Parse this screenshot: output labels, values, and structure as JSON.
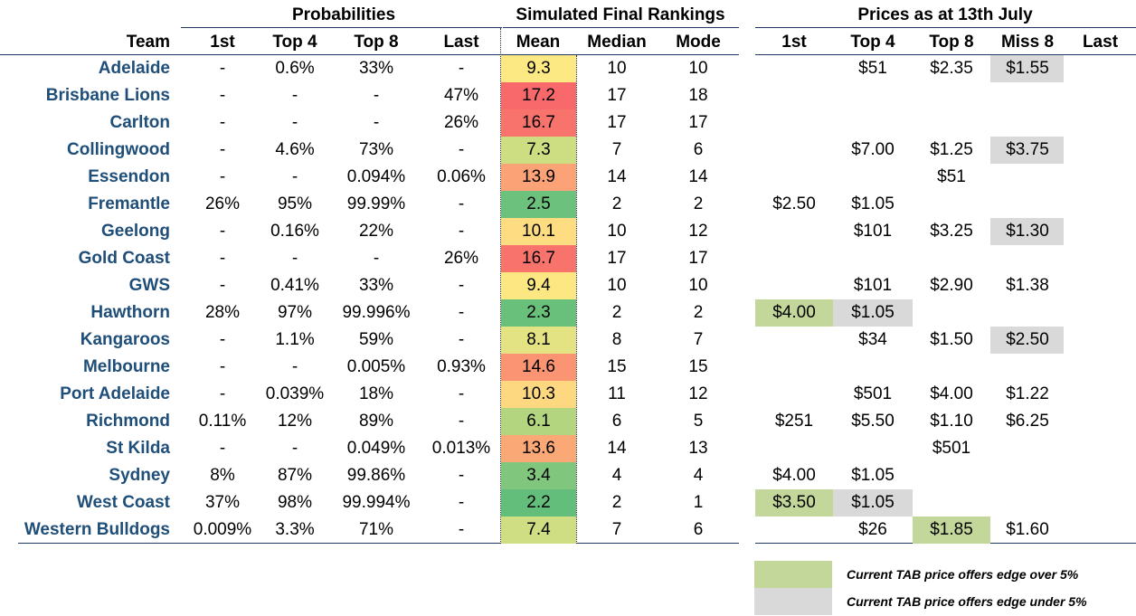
{
  "groups": {
    "probabilities": "Probabilities",
    "simulated": "Simulated Final Rankings",
    "prices": "Prices as at 13th July"
  },
  "headers": {
    "team": "Team",
    "p_1st": "1st",
    "p_top4": "Top 4",
    "p_top8": "Top 8",
    "p_last": "Last",
    "mean": "Mean",
    "median": "Median",
    "mode": "Mode",
    "pr_1st": "1st",
    "pr_top4": "Top 4",
    "pr_top8": "Top 8",
    "pr_miss8": "Miss 8",
    "pr_last": "Last"
  },
  "colors": {
    "green_edge": "#c4d79b",
    "grey_edge": "#d9d9d9",
    "title_blue": "#1f4e79"
  },
  "rows": [
    {
      "team": "Adelaide",
      "p1st": "-",
      "ptop4": "0.6%",
      "ptop8": "33%",
      "plast": "-",
      "mean": "9.3",
      "mean_color": "#fde983",
      "median": "10",
      "mode": "10",
      "pr1st": "",
      "prtop4": "$51",
      "prtop8": "$2.35",
      "prmiss8": "$1.55",
      "prlast": "",
      "hl": {
        "prmiss8": "grey"
      }
    },
    {
      "team": "Brisbane Lions",
      "p1st": "-",
      "ptop4": "-",
      "ptop8": "-",
      "plast": "47%",
      "mean": "17.2",
      "mean_color": "#f8696b",
      "median": "17",
      "mode": "18",
      "pr1st": "",
      "prtop4": "",
      "prtop8": "",
      "prmiss8": "",
      "prlast": "",
      "hl": {}
    },
    {
      "team": "Carlton",
      "p1st": "-",
      "ptop4": "-",
      "ptop8": "-",
      "plast": "26%",
      "mean": "16.7",
      "mean_color": "#f8736c",
      "median": "17",
      "mode": "17",
      "pr1st": "",
      "prtop4": "",
      "prtop8": "",
      "prmiss8": "",
      "prlast": "",
      "hl": {}
    },
    {
      "team": "Collingwood",
      "p1st": "-",
      "ptop4": "4.6%",
      "ptop8": "73%",
      "plast": "-",
      "mean": "7.3",
      "mean_color": "#cddd82",
      "median": "7",
      "mode": "6",
      "pr1st": "",
      "prtop4": "$7.00",
      "prtop8": "$1.25",
      "prmiss8": "$3.75",
      "prlast": "",
      "hl": {
        "prmiss8": "grey"
      }
    },
    {
      "team": "Essendon",
      "p1st": "-",
      "ptop4": "-",
      "ptop8": "0.094%",
      "plast": "0.06%",
      "mean": "13.9",
      "mean_color": "#fba276",
      "median": "14",
      "mode": "14",
      "pr1st": "",
      "prtop4": "",
      "prtop8": "$51",
      "prmiss8": "",
      "prlast": "",
      "hl": {}
    },
    {
      "team": "Fremantle",
      "p1st": "26%",
      "ptop4": "95%",
      "ptop8": "99.99%",
      "plast": "-",
      "mean": "2.5",
      "mean_color": "#6cc17c",
      "median": "2",
      "mode": "2",
      "pr1st": "$2.50",
      "prtop4": "$1.05",
      "prtop8": "",
      "prmiss8": "",
      "prlast": "",
      "hl": {}
    },
    {
      "team": "Geelong",
      "p1st": "-",
      "ptop4": "0.16%",
      "ptop8": "22%",
      "plast": "-",
      "mean": "10.1",
      "mean_color": "#fedc81",
      "median": "10",
      "mode": "12",
      "pr1st": "",
      "prtop4": "$101",
      "prtop8": "$3.25",
      "prmiss8": "$1.30",
      "prlast": "",
      "hl": {
        "prmiss8": "grey"
      }
    },
    {
      "team": "Gold Coast",
      "p1st": "-",
      "ptop4": "-",
      "ptop8": "-",
      "plast": "26%",
      "mean": "16.7",
      "mean_color": "#f8736c",
      "median": "17",
      "mode": "17",
      "pr1st": "",
      "prtop4": "",
      "prtop8": "",
      "prmiss8": "",
      "prlast": "",
      "hl": {}
    },
    {
      "team": "GWS",
      "p1st": "-",
      "ptop4": "0.41%",
      "ptop8": "33%",
      "plast": "-",
      "mean": "9.4",
      "mean_color": "#fde783",
      "median": "10",
      "mode": "10",
      "pr1st": "",
      "prtop4": "$101",
      "prtop8": "$2.90",
      "prmiss8": "$1.38",
      "prlast": "",
      "hl": {}
    },
    {
      "team": "Hawthorn",
      "p1st": "28%",
      "ptop4": "97%",
      "ptop8": "99.996%",
      "plast": "-",
      "mean": "2.3",
      "mean_color": "#69c07b",
      "median": "2",
      "mode": "2",
      "pr1st": "$4.00",
      "prtop4": "$1.05",
      "prtop8": "",
      "prmiss8": "",
      "prlast": "",
      "hl": {
        "pr1st": "green",
        "prtop4": "grey"
      }
    },
    {
      "team": "Kangaroos",
      "p1st": "-",
      "ptop4": "1.1%",
      "ptop8": "59%",
      "plast": "-",
      "mean": "8.1",
      "mean_color": "#e3e383",
      "median": "8",
      "mode": "7",
      "pr1st": "",
      "prtop4": "$34",
      "prtop8": "$1.50",
      "prmiss8": "$2.50",
      "prlast": "",
      "hl": {
        "prmiss8": "grey"
      }
    },
    {
      "team": "Melbourne",
      "p1st": "-",
      "ptop4": "-",
      "ptop8": "0.005%",
      "plast": "0.93%",
      "mean": "14.6",
      "mean_color": "#fa9473",
      "median": "15",
      "mode": "15",
      "pr1st": "",
      "prtop4": "",
      "prtop8": "",
      "prmiss8": "",
      "prlast": "",
      "hl": {}
    },
    {
      "team": "Port Adelaide",
      "p1st": "-",
      "ptop4": "0.039%",
      "ptop8": "18%",
      "plast": "-",
      "mean": "10.3",
      "mean_color": "#fed880",
      "median": "11",
      "mode": "12",
      "pr1st": "",
      "prtop4": "$501",
      "prtop8": "$4.00",
      "prmiss8": "$1.22",
      "prlast": "",
      "hl": {}
    },
    {
      "team": "Richmond",
      "p1st": "0.11%",
      "ptop4": "12%",
      "ptop8": "89%",
      "plast": "-",
      "mean": "6.1",
      "mean_color": "#b4d580",
      "median": "6",
      "mode": "5",
      "pr1st": "$251",
      "prtop4": "$5.50",
      "prtop8": "$1.10",
      "prmiss8": "$6.25",
      "prlast": "",
      "hl": {}
    },
    {
      "team": "St Kilda",
      "p1st": "-",
      "ptop4": "-",
      "ptop8": "0.049%",
      "plast": "0.013%",
      "mean": "13.6",
      "mean_color": "#fba877",
      "median": "14",
      "mode": "13",
      "pr1st": "",
      "prtop4": "",
      "prtop8": "$501",
      "prmiss8": "",
      "prlast": "",
      "hl": {}
    },
    {
      "team": "Sydney",
      "p1st": "8%",
      "ptop4": "87%",
      "ptop8": "99.86%",
      "plast": "-",
      "mean": "3.4",
      "mean_color": "#80c77d",
      "median": "4",
      "mode": "4",
      "pr1st": "$4.00",
      "prtop4": "$1.05",
      "prtop8": "",
      "prmiss8": "",
      "prlast": "",
      "hl": {}
    },
    {
      "team": "West Coast",
      "p1st": "37%",
      "ptop4": "98%",
      "ptop8": "99.994%",
      "plast": "-",
      "mean": "2.2",
      "mean_color": "#63be7b",
      "median": "2",
      "mode": "1",
      "pr1st": "$3.50",
      "prtop4": "$1.05",
      "prtop8": "",
      "prmiss8": "",
      "prlast": "",
      "hl": {
        "pr1st": "green",
        "prtop4": "grey"
      }
    },
    {
      "team": "Western Bulldogs",
      "p1st": "0.009%",
      "ptop4": "3.3%",
      "ptop8": "71%",
      "plast": "-",
      "mean": "7.4",
      "mean_color": "#cfde82",
      "median": "7",
      "mode": "6",
      "pr1st": "",
      "prtop4": "$26",
      "prtop8": "$1.85",
      "prmiss8": "$1.60",
      "prlast": "",
      "hl": {
        "prtop8": "green"
      }
    }
  ],
  "legend": {
    "green_text": "Current TAB price offers edge over 5%",
    "grey_text": "Current TAB price offers edge under 5%"
  }
}
